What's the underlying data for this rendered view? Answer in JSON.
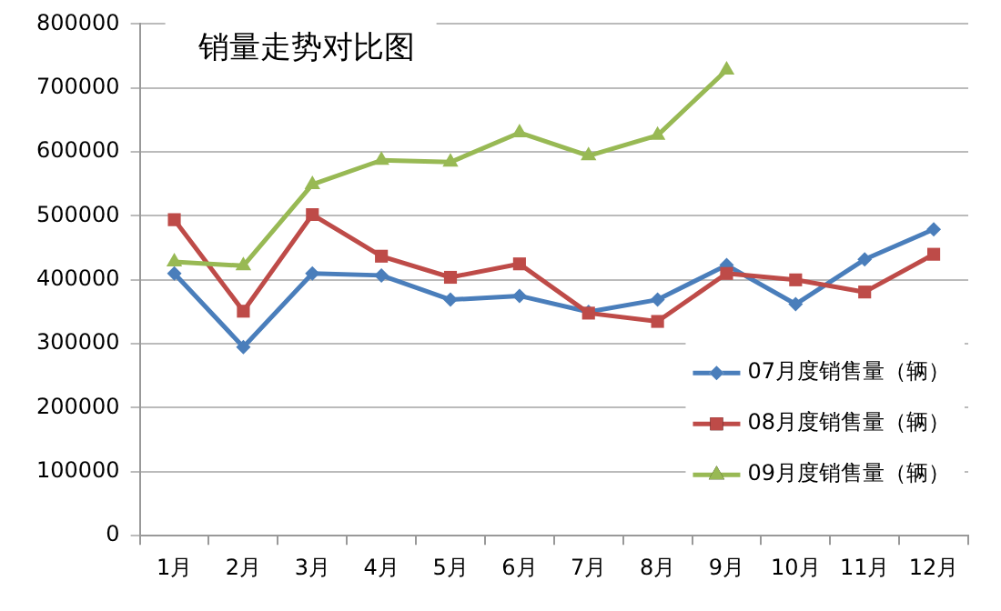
{
  "chart_data": {
    "type": "line",
    "title": "销量走势对比图",
    "categories": [
      "1月",
      "2月",
      "3月",
      "4月",
      "5月",
      "6月",
      "7月",
      "8月",
      "9月",
      "10月",
      "11月",
      "12月"
    ],
    "series": [
      {
        "name": "07月度销售量（辆）",
        "color": "#4a7ebb",
        "marker": "diamond",
        "values": [
          410000,
          295000,
          410000,
          407000,
          369000,
          375000,
          350000,
          369000,
          423000,
          362000,
          432000,
          479000
        ]
      },
      {
        "name": "08月度销售量（辆）",
        "color": "#be4b48",
        "marker": "square",
        "values": [
          494000,
          351000,
          502000,
          437000,
          404000,
          425000,
          348000,
          335000,
          410000,
          400000,
          381000,
          440000
        ]
      },
      {
        "name": "09月度销售量（辆）",
        "color": "#98b954",
        "marker": "triangle",
        "values": [
          428000,
          422000,
          549000,
          587000,
          584000,
          630000,
          594000,
          626000,
          728000,
          null,
          null,
          null
        ]
      }
    ],
    "ylim": [
      0,
      800000
    ],
    "yticks": [
      0,
      100000,
      200000,
      300000,
      400000,
      500000,
      600000,
      700000,
      800000
    ],
    "grid": "y",
    "legend": "right"
  }
}
